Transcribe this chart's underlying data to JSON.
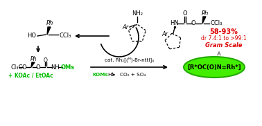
{
  "bg": "#ffffff",
  "black": "#000000",
  "green": "#00bb00",
  "red": "#dd0000",
  "gray": "#888888",
  "ellipse_fill": "#44ee00",
  "ellipse_edge": "#22aa00",
  "tl_Ph": "Ph",
  "tl_HO": "HO",
  "tl_CCl3": "CCl₃",
  "tc_NH2": "NH₂",
  "tc_Ar": "Ar",
  "tr_O": "O",
  "tr_HN": "HN",
  "tr_O2": "O",
  "tr_Ph": "Ph",
  "tr_CCl3": "CCl₃",
  "tr_Ar": "Ar",
  "tr_yield": "58-93%",
  "tr_dr": "dr 7.4:1 to >99:1",
  "tr_scale": "Gram Scale",
  "bl_Cl3C": "Cl₃C",
  "bl_O1": "O",
  "bl_O2": "O",
  "bl_NH": "NH",
  "bl_OMs": "OMs",
  "bl_Ph": "Ph",
  "bl_add": "+ KOAc / EtOAc",
  "bc_cat": "cat. Rh₂[(ᴹ)-Br-nttl]₄",
  "bc_KOMs": "KOMs",
  "bc_H": "H⁺",
  "bc_byp": "CO₂ + SO₄",
  "br_label": "[R*OC(O)N=Rh*]"
}
